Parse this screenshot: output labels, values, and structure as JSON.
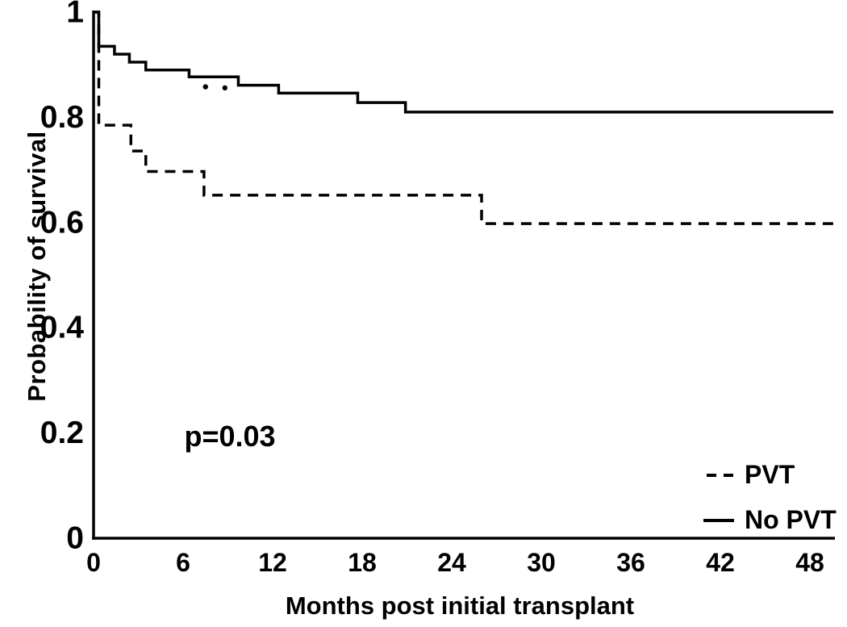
{
  "figure": {
    "background_color": "#ffffff",
    "ink_color": "#000000"
  },
  "chart_data": {
    "type": "line",
    "subtype": "kaplan-meier-step",
    "title": "",
    "xlabel": "Months post initial transplant",
    "ylabel": "Probability of survival",
    "xlim": [
      0,
      48
    ],
    "ylim": [
      0,
      1
    ],
    "grid": false,
    "x_ticks": [
      0,
      6,
      12,
      18,
      24,
      30,
      36,
      42,
      48
    ],
    "x_tick_labels": [
      "0",
      "6",
      "12",
      "18",
      "24",
      "30",
      "36",
      "42",
      "48"
    ],
    "y_ticks": [
      0,
      0.2,
      0.4,
      0.6,
      0.8,
      1
    ],
    "y_tick_labels": [
      "0",
      "0.2",
      "0.4",
      "0.6",
      "0.8",
      "1"
    ],
    "legend_position": "bottom-right-inside",
    "annotation": {
      "text": "p=0.03",
      "x": 9.1,
      "y": 0.19
    },
    "series": [
      {
        "name": "PVT",
        "style": "dashed",
        "points": [
          [
            0,
            1.0
          ],
          [
            0.35,
            0.785
          ],
          [
            2.5,
            0.736
          ],
          [
            3.5,
            0.697
          ],
          [
            7.4,
            0.652
          ],
          [
            26.0,
            0.598
          ],
          [
            48,
            0.598
          ]
        ]
      },
      {
        "name": "No PVT",
        "style": "solid",
        "points": [
          [
            0,
            1.0
          ],
          [
            0.35,
            0.935
          ],
          [
            1.4,
            0.92
          ],
          [
            2.4,
            0.905
          ],
          [
            3.5,
            0.89
          ],
          [
            6.4,
            0.877
          ],
          [
            9.7,
            0.861
          ],
          [
            12.4,
            0.846
          ],
          [
            17.7,
            0.828
          ],
          [
            20.9,
            0.81
          ],
          [
            48,
            0.81
          ]
        ]
      }
    ],
    "censor_marks": [
      {
        "series": "No PVT",
        "x": 7.5,
        "y": 0.858
      },
      {
        "series": "No PVT",
        "x": 8.8,
        "y": 0.856
      }
    ]
  }
}
